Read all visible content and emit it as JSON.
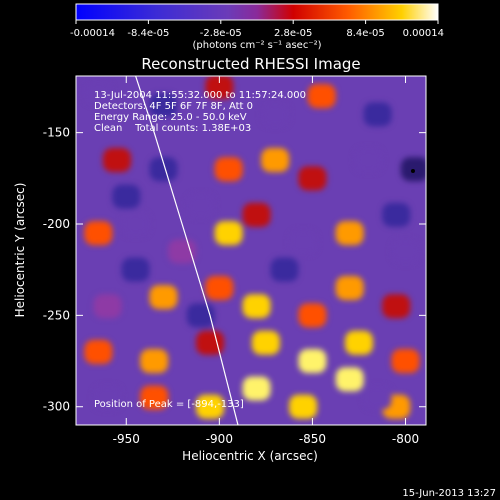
{
  "colorbar": {
    "ticks": [
      "-0.00014",
      "-8.4e-05",
      "-2.8e-05",
      "2.8e-05",
      "8.4e-05",
      "0.00014"
    ],
    "units": "(photons cm⁻² s⁻¹ asec⁻²)",
    "range": [
      -0.00014,
      0.00014
    ]
  },
  "annotations": [
    "13-Jul-2004 11:55:32.000 to 11:57:24.000",
    "Detectors: 4F 5F 6F 7F 8F, Att 0",
    "Energy Range: 25.0 - 50.0 keV",
    "Clean    Total counts: 1.38E+03"
  ],
  "peak_label": "Position of Peak = [-894,-133]",
  "footer_timestamp": "15-Jun-2013 13:27",
  "chart_data": {
    "type": "heatmap",
    "title": "Reconstructed RHESSI Image",
    "xlabel": "Heliocentric X (arcsec)",
    "ylabel": "Heliocentric Y (arcsec)",
    "xlim": [
      -977,
      -789
    ],
    "ylim": [
      -310,
      -119
    ],
    "xticks": [
      -950,
      -900,
      -850,
      -800
    ],
    "yticks": [
      -150,
      -200,
      -250,
      -300
    ],
    "xticklabels": [
      "-950",
      "-900",
      "-850",
      "-800"
    ],
    "yticklabels": [
      "-150",
      "-200",
      "-250",
      "-300"
    ],
    "peak_position": [
      -894,
      -133
    ],
    "limb_curve": [
      [
        -945,
        -119
      ],
      [
        -935,
        -150
      ],
      [
        -920,
        -200
      ],
      [
        -905,
        -250
      ],
      [
        -890,
        -310
      ]
    ],
    "colormap": "blue-purple-red-yellow-white"
  }
}
